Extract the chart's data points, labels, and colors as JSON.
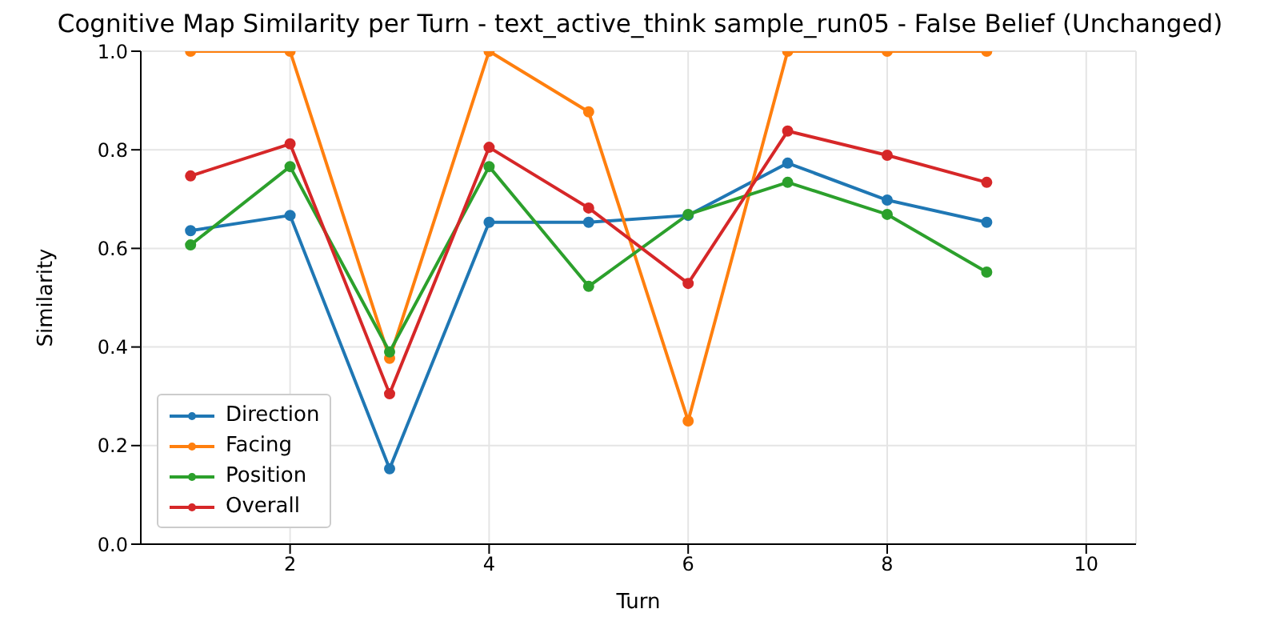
{
  "chart_data": {
    "type": "line",
    "title": "Cognitive Map Similarity per Turn - text_active_think sample_run05 - False Belief (Unchanged)",
    "xlabel": "Turn",
    "ylabel": "Similarity",
    "x": [
      1,
      2,
      3,
      4,
      5,
      6,
      7,
      8,
      9
    ],
    "series": [
      {
        "name": "Direction",
        "color": "#1f77b4",
        "values": [
          0.636,
          0.667,
          0.153,
          0.653,
          0.653,
          0.667,
          0.773,
          0.698,
          0.653
        ]
      },
      {
        "name": "Facing",
        "color": "#ff7f0e",
        "values": [
          1.0,
          1.0,
          0.377,
          1.0,
          0.877,
          0.25,
          1.0,
          1.0,
          1.0
        ]
      },
      {
        "name": "Position",
        "color": "#2ca02c",
        "values": [
          0.607,
          0.766,
          0.39,
          0.766,
          0.523,
          0.669,
          0.734,
          0.669,
          0.552
        ]
      },
      {
        "name": "Overall",
        "color": "#d62728",
        "values": [
          0.747,
          0.812,
          0.305,
          0.805,
          0.682,
          0.529,
          0.838,
          0.789,
          0.734
        ]
      }
    ],
    "xlim": [
      0.5,
      10.5
    ],
    "xticks": [
      2,
      4,
      6,
      8,
      10
    ],
    "ylim": [
      0,
      1
    ],
    "yticks": [
      {
        "value": 0,
        "label": "0.0"
      },
      0.2,
      0.4,
      0.6,
      0.8,
      {
        "value": 1,
        "label": "1.0"
      }
    ],
    "grid": true,
    "legend": "bottom left",
    "marker": "circle",
    "line_style": "solid"
  }
}
